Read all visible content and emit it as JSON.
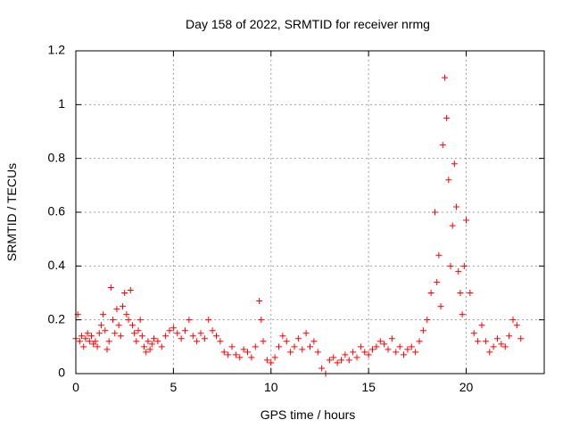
{
  "chart_data": {
    "type": "scatter",
    "title": "Day 158 of 2022, SRMTID for receiver nrmg",
    "xlabel": "GPS time / hours",
    "ylabel": "SRMTID / TECUs",
    "xlim": [
      0,
      24
    ],
    "ylim": [
      0,
      1.2
    ],
    "xticks": [
      0,
      5,
      10,
      15,
      20
    ],
    "yticks": [
      0,
      0.2,
      0.4,
      0.6,
      0.8,
      1,
      1.2
    ],
    "grid": true,
    "marker": "+",
    "color": "#ff0000",
    "series": [
      {
        "name": "SRMTID",
        "x": [
          0.0,
          0.1,
          0.2,
          0.3,
          0.4,
          0.5,
          0.6,
          0.7,
          0.8,
          0.9,
          1.0,
          1.1,
          1.2,
          1.3,
          1.4,
          1.5,
          1.6,
          1.7,
          1.8,
          1.9,
          2.0,
          2.1,
          2.2,
          2.3,
          2.4,
          2.5,
          2.6,
          2.7,
          2.8,
          2.9,
          3.0,
          3.1,
          3.2,
          3.3,
          3.4,
          3.5,
          3.6,
          3.7,
          3.8,
          3.9,
          4.0,
          4.2,
          4.4,
          4.6,
          4.8,
          5.0,
          5.2,
          5.4,
          5.6,
          5.8,
          6.0,
          6.2,
          6.4,
          6.6,
          6.8,
          7.0,
          7.2,
          7.4,
          7.6,
          7.8,
          8.0,
          8.2,
          8.4,
          8.6,
          8.8,
          9.0,
          9.2,
          9.4,
          9.5,
          9.6,
          9.8,
          10.0,
          10.2,
          10.4,
          10.6,
          10.8,
          11.0,
          11.2,
          11.4,
          11.6,
          11.8,
          12.0,
          12.2,
          12.4,
          12.6,
          12.8,
          13.0,
          13.2,
          13.4,
          13.6,
          13.8,
          14.0,
          14.2,
          14.4,
          14.6,
          14.8,
          15.0,
          15.2,
          15.4,
          15.6,
          15.8,
          16.0,
          16.2,
          16.4,
          16.6,
          16.8,
          17.0,
          17.2,
          17.4,
          17.6,
          17.8,
          18.0,
          18.2,
          18.4,
          18.5,
          18.6,
          18.7,
          18.8,
          18.9,
          19.0,
          19.1,
          19.2,
          19.3,
          19.4,
          19.5,
          19.6,
          19.7,
          19.8,
          19.9,
          20.0,
          20.2,
          20.4,
          20.6,
          20.8,
          21.0,
          21.2,
          21.4,
          21.6,
          21.8,
          22.0,
          22.2,
          22.4,
          22.6,
          22.8
        ],
        "y": [
          0.13,
          0.22,
          0.12,
          0.14,
          0.1,
          0.13,
          0.15,
          0.12,
          0.14,
          0.11,
          0.12,
          0.1,
          0.15,
          0.18,
          0.22,
          0.16,
          0.09,
          0.12,
          0.32,
          0.2,
          0.15,
          0.24,
          0.18,
          0.14,
          0.25,
          0.3,
          0.22,
          0.2,
          0.31,
          0.18,
          0.15,
          0.12,
          0.16,
          0.2,
          0.14,
          0.1,
          0.08,
          0.12,
          0.09,
          0.11,
          0.13,
          0.12,
          0.1,
          0.14,
          0.16,
          0.17,
          0.15,
          0.13,
          0.16,
          0.2,
          0.14,
          0.12,
          0.15,
          0.13,
          0.2,
          0.16,
          0.14,
          0.12,
          0.08,
          0.07,
          0.1,
          0.07,
          0.06,
          0.09,
          0.08,
          0.06,
          0.1,
          0.27,
          0.2,
          0.12,
          0.05,
          0.04,
          0.06,
          0.1,
          0.14,
          0.12,
          0.08,
          0.1,
          0.13,
          0.09,
          0.15,
          0.1,
          0.12,
          0.08,
          0.02,
          0.0,
          0.05,
          0.06,
          0.04,
          0.05,
          0.07,
          0.05,
          0.08,
          0.06,
          0.1,
          0.08,
          0.07,
          0.09,
          0.1,
          0.12,
          0.11,
          0.09,
          0.13,
          0.08,
          0.1,
          0.07,
          0.09,
          0.1,
          0.08,
          0.12,
          0.16,
          0.2,
          0.3,
          0.6,
          0.34,
          0.44,
          0.25,
          0.85,
          1.1,
          0.95,
          0.72,
          0.4,
          0.55,
          0.78,
          0.62,
          0.38,
          0.3,
          0.22,
          0.4,
          0.57,
          0.3,
          0.15,
          0.12,
          0.18,
          0.12,
          0.08,
          0.1,
          0.13,
          0.11,
          0.1,
          0.14,
          0.2,
          0.18,
          0.13
        ]
      }
    ]
  }
}
